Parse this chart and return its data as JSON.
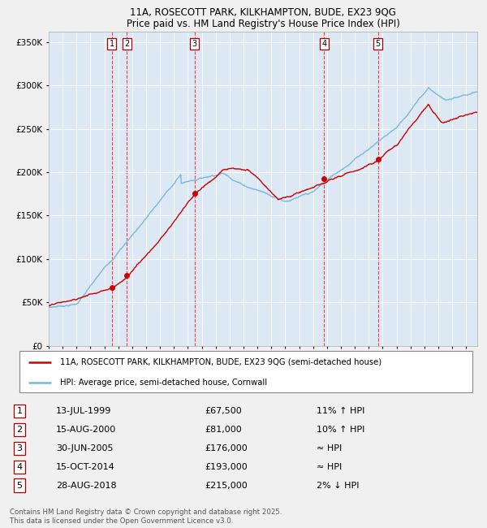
{
  "title1": "11A, ROSECOTT PARK, KILKHAMPTON, BUDE, EX23 9QG",
  "title2": "Price paid vs. HM Land Registry's House Price Index (HPI)",
  "ylabel_vals": [
    "£0",
    "£50K",
    "£100K",
    "£150K",
    "£200K",
    "£250K",
    "£300K",
    "£350K"
  ],
  "yticks": [
    0,
    50000,
    100000,
    150000,
    200000,
    250000,
    300000,
    350000
  ],
  "ylim": [
    0,
    362000
  ],
  "legend_line1": "11A, ROSECOTT PARK, KILKHAMPTON, BUDE, EX23 9QG (semi-detached house)",
  "legend_line2": "HPI: Average price, semi-detached house, Cornwall",
  "transactions": [
    {
      "num": 1,
      "date": "13-JUL-1999",
      "year": 1999.54,
      "price": 67500,
      "rel": "11% ↑ HPI"
    },
    {
      "num": 2,
      "date": "15-AUG-2000",
      "year": 2000.62,
      "price": 81000,
      "rel": "10% ↑ HPI"
    },
    {
      "num": 3,
      "date": "30-JUN-2005",
      "year": 2005.49,
      "price": 176000,
      "rel": "≈ HPI"
    },
    {
      "num": 4,
      "date": "15-OCT-2014",
      "year": 2014.79,
      "price": 193000,
      "rel": "≈ HPI"
    },
    {
      "num": 5,
      "date": "28-AUG-2018",
      "year": 2018.66,
      "price": 215000,
      "rel": "2% ↓ HPI"
    }
  ],
  "hpi_color": "#7ab8d9",
  "price_color": "#cc0000",
  "background_color": "#dce9f5",
  "fig_bg": "#f0f0f0",
  "footnote1": "Contains HM Land Registry data © Crown copyright and database right 2025.",
  "footnote2": "This data is licensed under the Open Government Licence v3.0."
}
